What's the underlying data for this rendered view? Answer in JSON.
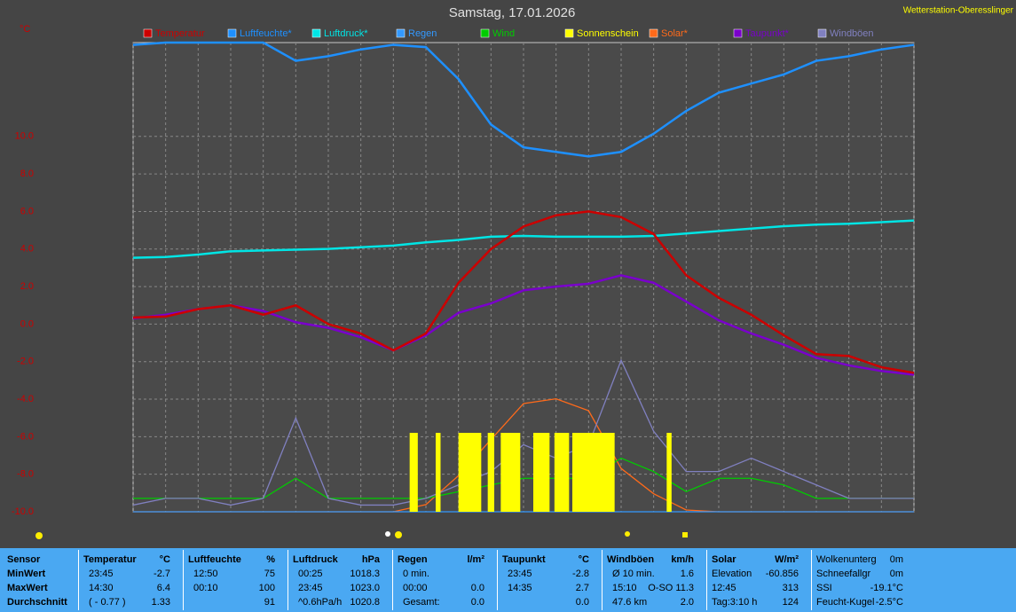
{
  "header": {
    "title": "Samstag, 17.01.2026",
    "station": "Wetterstation-Oberesslinger"
  },
  "chart_data": {
    "type": "line",
    "y_label": "°C",
    "xlim": [
      0,
      24
    ],
    "xticks": [
      0,
      1,
      2,
      3,
      4,
      5,
      6,
      7,
      8,
      9,
      10,
      11,
      12,
      13,
      14,
      15,
      16,
      17,
      18,
      19,
      20,
      21,
      22,
      23,
      24
    ],
    "ylim": [
      -10,
      15
    ],
    "yticks": [
      {
        "value": -10,
        "label": "-10.0"
      },
      {
        "value": -8,
        "label": "-8.0"
      },
      {
        "value": -6,
        "label": "-6.0"
      },
      {
        "value": -4,
        "label": "-4.0"
      },
      {
        "value": -2,
        "label": "-2.0"
      },
      {
        "value": 0,
        "label": "0.0"
      },
      {
        "value": 2,
        "label": "2.0"
      },
      {
        "value": 4,
        "label": "4.0"
      },
      {
        "value": 6,
        "label": "6.0"
      },
      {
        "value": 8,
        "label": "8.0"
      },
      {
        "value": 10,
        "label": "10.0"
      }
    ],
    "grid": true,
    "x": [
      0,
      1,
      2,
      3,
      4,
      5,
      6,
      7,
      8,
      9,
      10,
      11,
      12,
      13,
      14,
      15,
      16,
      17,
      18,
      19,
      20,
      21,
      22,
      23,
      24
    ],
    "series": [
      {
        "name": "Temperatur",
        "color": "#cc0000",
        "values": [
          0.35,
          0.4,
          0.8,
          1.0,
          0.5,
          1.0,
          0.0,
          -0.5,
          -1.4,
          -0.5,
          2.2,
          4.0,
          5.2,
          5.8,
          6.0,
          5.7,
          4.8,
          2.6,
          1.4,
          0.5,
          -0.6,
          -1.6,
          -1.7,
          -2.3,
          -2.6
        ]
      },
      {
        "name": "Luftfeuchte*",
        "color": "#1e90ff",
        "ylim": [
          -3,
          100
        ],
        "values": [
          99.5,
          100,
          100,
          100,
          100,
          96,
          97,
          98.5,
          99.5,
          99,
          92,
          82,
          77,
          76,
          75,
          76,
          80,
          85,
          89,
          91,
          93,
          96,
          97,
          98.5,
          99.5
        ]
      },
      {
        "name": "Luftdruck*",
        "color": "#00e5e5",
        "ylim": [
          987,
          1045
        ],
        "values": [
          1018.4,
          1018.5,
          1018.8,
          1019.2,
          1019.3,
          1019.4,
          1019.5,
          1019.7,
          1019.9,
          1020.3,
          1020.6,
          1021.0,
          1021.1,
          1021.0,
          1021.0,
          1021.0,
          1021.1,
          1021.4,
          1021.7,
          1022.0,
          1022.3,
          1022.5,
          1022.6,
          1022.8,
          1023.0
        ]
      },
      {
        "name": "Regen",
        "color": "#3399ff",
        "ylim": [
          0,
          35
        ],
        "values": [
          0,
          0,
          0,
          0,
          0,
          0,
          0,
          0,
          0,
          0,
          0,
          0,
          0,
          0,
          0,
          0,
          0,
          0,
          0,
          0,
          0,
          0,
          0,
          0,
          0
        ]
      },
      {
        "name": "Wind",
        "color": "#00cc00",
        "ylim": [
          0,
          35
        ],
        "values": [
          1,
          1,
          1,
          1,
          1,
          2.5,
          1,
          1,
          1,
          1,
          1.5,
          2,
          2.5,
          2.5,
          2.5,
          4,
          3,
          1.5,
          2.5,
          2.5,
          2,
          1,
          1,
          1,
          1
        ]
      },
      {
        "name": "Sonnenschein",
        "color": "#ffff00",
        "intervals": [
          [
            8.5,
            8.75
          ],
          [
            9.3,
            9.45
          ],
          [
            10,
            10.7
          ],
          [
            10.9,
            11.1
          ],
          [
            11.3,
            11.9
          ],
          [
            12.3,
            12.8
          ],
          [
            12.95,
            13.4
          ],
          [
            13.5,
            14.8
          ],
          [
            16.4,
            16.55
          ]
        ]
      },
      {
        "name": "Solar*",
        "color": "#ff6a1a",
        "ylim": [
          0,
          1300
        ],
        "values": [
          0,
          0,
          0,
          0,
          0,
          0,
          0,
          0,
          0,
          20,
          100,
          200,
          300,
          313,
          280,
          120,
          50,
          5,
          0,
          0,
          0,
          0,
          0,
          0,
          0
        ]
      },
      {
        "name": "Taupunkt*",
        "color": "#7a00cc",
        "values": [
          0.3,
          0.5,
          0.8,
          1.0,
          0.7,
          0.1,
          -0.2,
          -0.7,
          -1.4,
          -0.6,
          0.6,
          1.1,
          1.8,
          2.0,
          2.15,
          2.6,
          2.2,
          1.2,
          0.2,
          -0.5,
          -1.1,
          -1.8,
          -2.2,
          -2.5,
          -2.7
        ]
      },
      {
        "name": "Windböen",
        "color": "#8080c0",
        "ylim": [
          0,
          35
        ],
        "values": [
          0.5,
          1,
          1,
          0.5,
          1,
          7,
          1,
          0.5,
          0.5,
          1,
          2,
          3,
          5,
          4,
          5,
          11.3,
          6,
          3,
          3,
          4,
          3,
          2,
          1,
          1,
          1
        ]
      }
    ]
  },
  "table": {
    "columns": [
      {
        "header": "Sensor",
        "rows": [
          {
            "left": "MinWert"
          },
          {
            "left": "MaxWert"
          },
          {
            "left": "Durchschnitt"
          }
        ]
      },
      {
        "header": "Temperatur",
        "unit": "°C",
        "rows": [
          {
            "left": "23:45",
            "right": "-2.7"
          },
          {
            "left": "14:30",
            "right": "6.4"
          },
          {
            "left": "( - 0.77 )",
            "right": "1.33"
          }
        ]
      },
      {
        "header": "Luftfeuchte",
        "unit": "%",
        "rows": [
          {
            "left": "12:50",
            "right": "75"
          },
          {
            "left": "00:10",
            "right": "100"
          },
          {
            "right": "91"
          }
        ]
      },
      {
        "header": "Luftdruck",
        "unit": "hPa",
        "rows": [
          {
            "left": "00:25",
            "right": "1018.3"
          },
          {
            "left": "23:45",
            "right": "1023.0"
          },
          {
            "left": "^0.6hPa/h",
            "right": "1020.8"
          }
        ]
      },
      {
        "header": "Regen",
        "unit": "l/m²",
        "rows": [
          {
            "left": "0 min."
          },
          {
            "left": "00:00",
            "right": "0.0"
          },
          {
            "left": "Gesamt:",
            "right": "0.0"
          }
        ]
      },
      {
        "header": "Taupunkt",
        "unit": "°C",
        "rows": [
          {
            "left": "23:45",
            "right": "-2.8"
          },
          {
            "left": "14:35",
            "right": "2.7"
          },
          {
            "right": "0.0"
          }
        ]
      },
      {
        "header": "Windböen",
        "unit": "km/h",
        "rows": [
          {
            "left": "Ø 10 min.",
            "right": "1.6"
          },
          {
            "left": "15:10",
            "right": "O-SO 11.3"
          },
          {
            "left": "47.6 km",
            "right": "2.0"
          }
        ]
      },
      {
        "header": "Solar",
        "unit": "W/m²",
        "rows": [
          {
            "left": "Elevation",
            "right": "-60.856"
          },
          {
            "left": "12:45",
            "right": "313"
          },
          {
            "left": "Tag:3:10 h",
            "right": "124"
          }
        ]
      },
      {
        "rows": [
          {
            "left": "Wolkenunterg",
            "right": "0m"
          },
          {
            "left": "Schneefallgr",
            "right": "0m"
          },
          {
            "left": "SSI",
            "right": "-19.1°C"
          },
          {
            "left": "Feucht-Kugel",
            "right": "-2.5°C"
          }
        ]
      }
    ]
  }
}
